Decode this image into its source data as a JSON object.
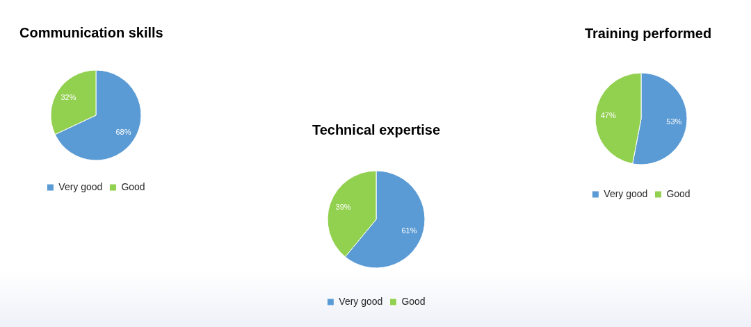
{
  "chart_data": [
    {
      "type": "pie",
      "title": "Communication skills",
      "categories": [
        "Very good",
        "Good"
      ],
      "values": [
        68,
        32
      ],
      "colors": [
        "#5b9bd5",
        "#92d050"
      ],
      "value_labels": [
        "68%",
        "32%"
      ],
      "legend": "bottom"
    },
    {
      "type": "pie",
      "title": "Technical expertise",
      "categories": [
        "Very good",
        "Good"
      ],
      "values": [
        61,
        39
      ],
      "colors": [
        "#5b9bd5",
        "#92d050"
      ],
      "value_labels": [
        "61%",
        "39%"
      ],
      "legend": "bottom"
    },
    {
      "type": "pie",
      "title": "Training performed",
      "categories": [
        "Very good",
        "Good"
      ],
      "values": [
        53,
        47
      ],
      "colors": [
        "#5b9bd5",
        "#92d050"
      ],
      "value_labels": [
        "53%",
        "47%"
      ],
      "legend": "bottom"
    }
  ]
}
